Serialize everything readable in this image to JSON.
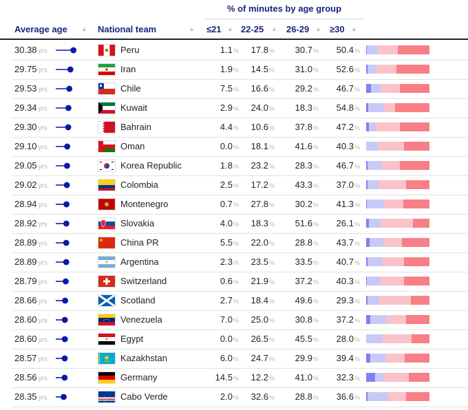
{
  "chart_data": {
    "type": "table",
    "title": "% of minutes by age group",
    "columns": {
      "average_age": "Average age",
      "team": "National team",
      "u21": "≤21",
      "a22_25": "22-25",
      "a26_29": "26-29",
      "o30": "≥30"
    },
    "age_unit": "yrs",
    "pct_unit": "%",
    "age_scale": [
      27,
      31
    ],
    "series_colors": [
      "#8080ee",
      "#c9c9f7",
      "#fac3c9",
      "#f77f85"
    ],
    "rows": [
      {
        "age": "30.38",
        "team": "Peru",
        "flag": "peru-flag",
        "u21": "1.1",
        "a22_25": "17.8",
        "a26_29": "30.7",
        "o30": "50.4"
      },
      {
        "age": "29.75",
        "team": "Iran",
        "flag": "iran-flag",
        "u21": "1.9",
        "a22_25": "14.5",
        "a26_29": "31.0",
        "o30": "52.6"
      },
      {
        "age": "29.53",
        "team": "Chile",
        "flag": "chile-flag",
        "u21": "7.5",
        "a22_25": "16.6",
        "a26_29": "29.2",
        "o30": "46.7"
      },
      {
        "age": "29.34",
        "team": "Kuwait",
        "flag": "kuwait-flag",
        "u21": "2.9",
        "a22_25": "24.0",
        "a26_29": "18.3",
        "o30": "54.8"
      },
      {
        "age": "29.30",
        "team": "Bahrain",
        "flag": "bahrain-flag",
        "u21": "4.4",
        "a22_25": "10.6",
        "a26_29": "37.8",
        "o30": "47.2"
      },
      {
        "age": "29.10",
        "team": "Oman",
        "flag": "oman-flag",
        "u21": "0.0",
        "a22_25": "18.1",
        "a26_29": "41.6",
        "o30": "40.3"
      },
      {
        "age": "29.05",
        "team": "Korea Republic",
        "flag": "korea-flag",
        "u21": "1.8",
        "a22_25": "23.2",
        "a26_29": "28.3",
        "o30": "46.7"
      },
      {
        "age": "29.02",
        "team": "Colombia",
        "flag": "colombia-flag",
        "u21": "2.5",
        "a22_25": "17.2",
        "a26_29": "43.3",
        "o30": "37.0"
      },
      {
        "age": "28.94",
        "team": "Montenegro",
        "flag": "montenegro-flag",
        "u21": "0.7",
        "a22_25": "27.8",
        "a26_29": "30.2",
        "o30": "41.3"
      },
      {
        "age": "28.92",
        "team": "Slovakia",
        "flag": "slovakia-flag",
        "u21": "4.0",
        "a22_25": "18.3",
        "a26_29": "51.6",
        "o30": "26.1"
      },
      {
        "age": "28.89",
        "team": "China PR",
        "flag": "china-flag",
        "u21": "5.5",
        "a22_25": "22.0",
        "a26_29": "28.8",
        "o30": "43.7"
      },
      {
        "age": "28.89",
        "team": "Argentina",
        "flag": "argentina-flag",
        "u21": "2.3",
        "a22_25": "23.5",
        "a26_29": "33.5",
        "o30": "40.7"
      },
      {
        "age": "28.79",
        "team": "Switzerland",
        "flag": "switzerland-flag",
        "u21": "0.6",
        "a22_25": "21.9",
        "a26_29": "37.2",
        "o30": "40.3"
      },
      {
        "age": "28.66",
        "team": "Scotland",
        "flag": "scotland-flag",
        "u21": "2.7",
        "a22_25": "18.4",
        "a26_29": "49.6",
        "o30": "29.3"
      },
      {
        "age": "28.60",
        "team": "Venezuela",
        "flag": "venezuela-flag",
        "u21": "7.0",
        "a22_25": "25.0",
        "a26_29": "30.8",
        "o30": "37.2"
      },
      {
        "age": "28.60",
        "team": "Egypt",
        "flag": "egypt-flag",
        "u21": "0.0",
        "a22_25": "26.5",
        "a26_29": "45.5",
        "o30": "28.0"
      },
      {
        "age": "28.57",
        "team": "Kazakhstan",
        "flag": "kazakhstan-flag",
        "u21": "6.0",
        "a22_25": "24.7",
        "a26_29": "29.9",
        "o30": "39.4"
      },
      {
        "age": "28.56",
        "team": "Germany",
        "flag": "germany-flag",
        "u21": "14.5",
        "a22_25": "12.2",
        "a26_29": "41.0",
        "o30": "32.3"
      },
      {
        "age": "28.35",
        "team": "Cabo Verde",
        "flag": "cabo-verde-flag",
        "u21": "2.0",
        "a22_25": "32.6",
        "a26_29": "28.8",
        "o30": "36.6"
      }
    ]
  }
}
